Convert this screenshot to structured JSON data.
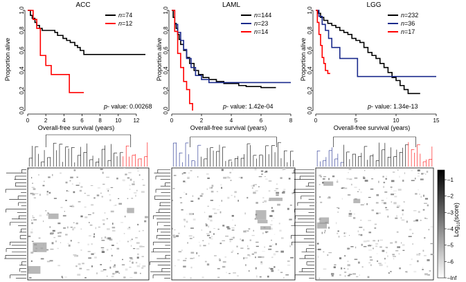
{
  "chart_data": [
    {
      "type": "line",
      "title": "ACC",
      "xlabel": "Overall-free survival (years)",
      "ylabel": "Proportion alive",
      "xlim": [
        0,
        13
      ],
      "ylim": [
        0,
        1
      ],
      "xticks": [
        0,
        2,
        4,
        6,
        8,
        10,
        12
      ],
      "yticks": [
        0.0,
        0.2,
        0.4,
        0.6,
        0.8,
        1.0
      ],
      "legend_position": "top-right",
      "pvalue_label": "p",
      "pvalue_text": "- value: 0.00268",
      "series": [
        {
          "name": "n=74",
          "color": "#000000",
          "x": [
            0,
            0.3,
            0.5,
            0.8,
            1.0,
            1.3,
            1.6,
            2.2,
            3.0,
            3.3,
            3.9,
            4.3,
            4.7,
            5.2,
            5.5,
            5.8,
            6.2,
            13.0
          ],
          "y": [
            1.0,
            0.95,
            0.92,
            0.88,
            0.85,
            0.82,
            0.8,
            0.8,
            0.78,
            0.75,
            0.72,
            0.7,
            0.68,
            0.65,
            0.63,
            0.6,
            0.56,
            0.56
          ]
        },
        {
          "name": "n=12",
          "color": "#ff0000",
          "x": [
            0,
            0.6,
            1.0,
            1.4,
            2.0,
            2.6,
            4.6,
            6.2
          ],
          "y": [
            1.0,
            0.91,
            0.82,
            0.55,
            0.45,
            0.36,
            0.18,
            0.18
          ]
        }
      ]
    },
    {
      "type": "line",
      "title": "LAML",
      "xlabel": "Overall-free survival (years)",
      "ylabel": "Proportion alive",
      "xlim": [
        0,
        8
      ],
      "ylim": [
        0,
        1
      ],
      "xticks": [
        0,
        2,
        4,
        6,
        8
      ],
      "yticks": [
        0.0,
        0.2,
        0.4,
        0.6,
        0.8,
        1.0
      ],
      "legend_position": "top-right",
      "pvalue_label": "p",
      "pvalue_text": "- value: 1.42e-04",
      "series": [
        {
          "name": "n=144",
          "color": "#000000",
          "x": [
            0,
            0.1,
            0.2,
            0.3,
            0.4,
            0.5,
            0.6,
            0.8,
            1.0,
            1.2,
            1.5,
            1.8,
            2.1,
            2.5,
            3.0,
            3.5,
            4.0,
            4.5,
            5.0,
            5.5,
            6.0,
            7.0
          ],
          "y": [
            1.0,
            0.93,
            0.87,
            0.82,
            0.76,
            0.71,
            0.66,
            0.6,
            0.53,
            0.47,
            0.4,
            0.36,
            0.33,
            0.31,
            0.29,
            0.27,
            0.27,
            0.25,
            0.24,
            0.24,
            0.23,
            0.23
          ]
        },
        {
          "name": "n=23",
          "color": "#1a2a8c",
          "x": [
            0,
            0.2,
            0.4,
            0.6,
            0.8,
            1.0,
            1.3,
            1.6,
            2.0,
            2.5,
            8.0
          ],
          "y": [
            1.0,
            0.86,
            0.78,
            0.7,
            0.61,
            0.52,
            0.43,
            0.35,
            0.31,
            0.28,
            0.28
          ]
        },
        {
          "name": "n=14",
          "color": "#ff0000",
          "x": [
            0,
            0.2,
            0.4,
            0.6,
            0.8,
            1.0,
            1.2,
            1.4
          ],
          "y": [
            1.0,
            0.79,
            0.57,
            0.43,
            0.29,
            0.21,
            0.07,
            0.0
          ]
        }
      ]
    },
    {
      "type": "line",
      "title": "LGG",
      "xlabel": "Overall-free survival (years)",
      "ylabel": "Proportion alive",
      "xlim": [
        0,
        15
      ],
      "ylim": [
        0,
        1
      ],
      "xticks": [
        0,
        5,
        10,
        15
      ],
      "yticks": [
        0.0,
        0.2,
        0.4,
        0.6,
        0.8,
        1.0
      ],
      "legend_position": "top-right",
      "pvalue_label": "p",
      "pvalue_text": "- value: 1.34e-13",
      "series": [
        {
          "name": "n=232",
          "color": "#000000",
          "x": [
            0,
            0.3,
            0.6,
            1.0,
            1.5,
            2.0,
            2.5,
            3.0,
            3.5,
            4.0,
            4.5,
            5.0,
            5.5,
            6.0,
            6.5,
            7.0,
            7.5,
            8.0,
            8.5,
            9.0,
            9.5,
            10.0,
            10.5,
            11.0,
            11.5,
            13.0
          ],
          "y": [
            1.0,
            0.97,
            0.93,
            0.9,
            0.87,
            0.85,
            0.83,
            0.8,
            0.78,
            0.76,
            0.72,
            0.7,
            0.68,
            0.63,
            0.58,
            0.55,
            0.52,
            0.47,
            0.43,
            0.38,
            0.33,
            0.3,
            0.25,
            0.21,
            0.17,
            0.17
          ]
        },
        {
          "name": "n=36",
          "color": "#1a2a8c",
          "x": [
            0,
            0.4,
            0.8,
            1.2,
            1.6,
            2.0,
            3.0,
            4.0,
            5.2,
            15.0
          ],
          "y": [
            1.0,
            0.94,
            0.86,
            0.8,
            0.72,
            0.63,
            0.52,
            0.52,
            0.34,
            0.34
          ]
        },
        {
          "name": "n=17",
          "color": "#ff0000",
          "x": [
            0,
            0.2,
            0.4,
            0.6,
            0.8,
            1.0,
            1.2,
            1.5,
            1.8
          ],
          "y": [
            1.0,
            0.88,
            0.76,
            0.65,
            0.53,
            0.47,
            0.4,
            0.37,
            0.37
          ]
        }
      ]
    },
    {
      "type": "heatmap",
      "colorbar": {
        "label": "Log",
        "label_sub": "10",
        "label_tail": "(score)",
        "ticks": [
          "–1",
          "–2",
          "–3",
          "–4",
          "–5",
          "–6",
          "–Inf"
        ],
        "high_color": "#000000",
        "low_color": "#ffffff"
      },
      "panels": [
        "ACC",
        "LAML",
        "LGG"
      ],
      "cluster_colors": {
        "ACC": "#ff0000",
        "LAML": "#1a2a8c",
        "LGG_a": "#1a2a8c",
        "LGG_b": "#ff0000"
      }
    }
  ]
}
